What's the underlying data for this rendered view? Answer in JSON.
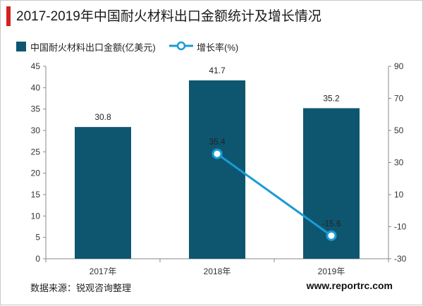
{
  "colors": {
    "bar": "#0e5670",
    "line": "#1a9bd4",
    "accent": "#d42020",
    "axis": "#888888"
  },
  "source": "数据来源：锐观咨询整理",
  "website": "www.reportrc.com",
  "chart_data": {
    "type": "bar",
    "title": "2017-2019年中国耐火材料出口金额统计及增长情况",
    "categories": [
      "2017年",
      "2018年",
      "2019年"
    ],
    "series": [
      {
        "name": "中国耐火材料出口金额(亿美元)",
        "type": "bar",
        "axis": "left",
        "values": [
          30.8,
          41.7,
          35.2
        ],
        "labels": [
          "30.8",
          "41.7",
          "35.2"
        ]
      },
      {
        "name": "增长率(%)",
        "type": "line",
        "axis": "right",
        "values": [
          null,
          35.4,
          -15.6
        ],
        "labels": [
          "",
          "35.4",
          "-15.6"
        ]
      }
    ],
    "y_left": {
      "ylim": [
        0,
        45
      ],
      "ticks": [
        0,
        5,
        10,
        15,
        20,
        25,
        30,
        35,
        40,
        45
      ]
    },
    "y_right": {
      "ylim": [
        -30,
        90
      ],
      "ticks": [
        -30,
        -10,
        10,
        30,
        50,
        70,
        90
      ]
    },
    "legend_position": "top-left",
    "grid": false
  }
}
